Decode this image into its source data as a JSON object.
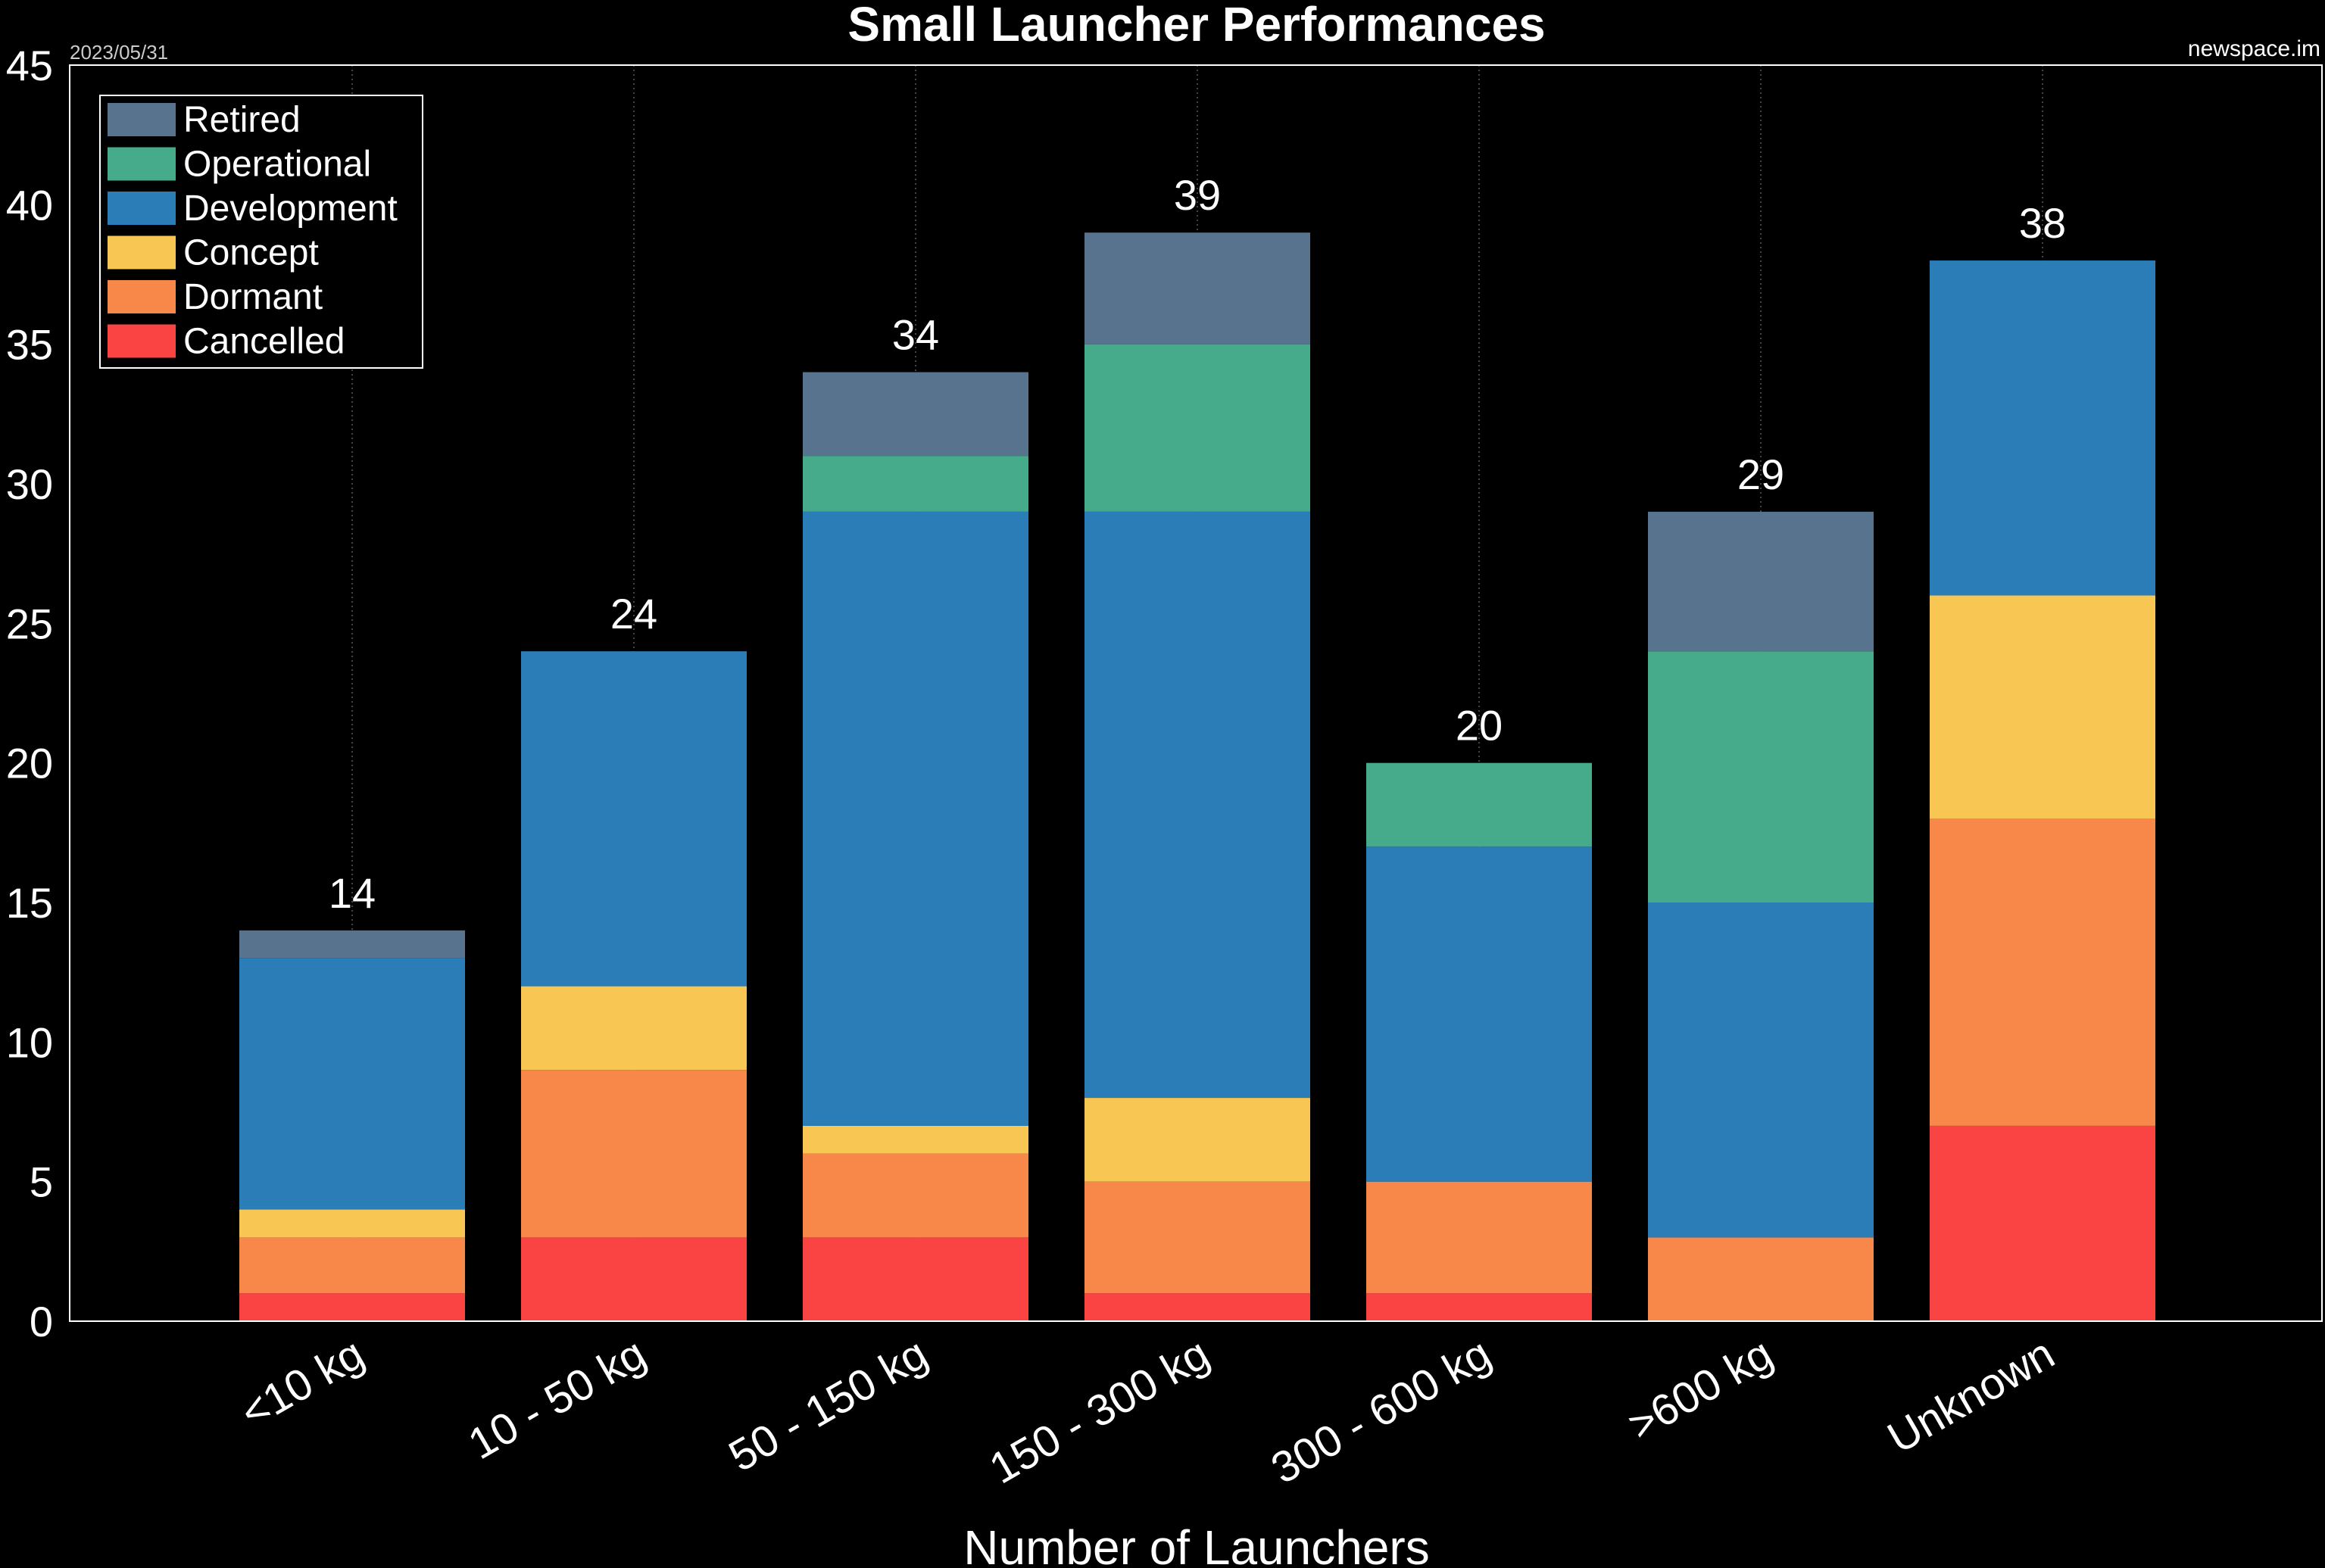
{
  "date": "2023/05/31",
  "source": "newspace.im",
  "chart_data": {
    "type": "bar",
    "stacked": true,
    "title": "Small Launcher Performances",
    "xlabel": "Number of Launchers",
    "ylabel": "",
    "ylim": [
      0,
      45
    ],
    "yticks": [
      0,
      5,
      10,
      15,
      20,
      25,
      30,
      35,
      40,
      45
    ],
    "grid": "vertical-dotted",
    "legend_position": "top-left",
    "categories": [
      "<10 kg",
      "10 - 50 kg",
      "50 - 150 kg",
      "150 - 300 kg",
      "300 - 600 kg",
      ">600 kg",
      "Unknown"
    ],
    "series": [
      {
        "name": "Cancelled",
        "color": "#fa4343",
        "values": [
          1,
          3,
          3,
          1,
          1,
          0,
          7
        ]
      },
      {
        "name": "Dormant",
        "color": "#f8874a",
        "values": [
          2,
          6,
          3,
          4,
          4,
          3,
          11
        ]
      },
      {
        "name": "Concept",
        "color": "#f8c652",
        "values": [
          1,
          3,
          1,
          3,
          0,
          0,
          8
        ]
      },
      {
        "name": "Development",
        "color": "#2a7db6",
        "values": [
          9,
          12,
          22,
          21,
          12,
          12,
          12
        ]
      },
      {
        "name": "Operational",
        "color": "#45ab8a",
        "values": [
          0,
          0,
          2,
          6,
          3,
          9,
          0
        ]
      },
      {
        "name": "Retired",
        "color": "#58738e",
        "values": [
          1,
          0,
          3,
          4,
          0,
          5,
          0
        ]
      }
    ],
    "totals": [
      14,
      24,
      34,
      39,
      20,
      29,
      38
    ],
    "legend_order": [
      "Retired",
      "Operational",
      "Development",
      "Concept",
      "Dormant",
      "Cancelled"
    ]
  }
}
